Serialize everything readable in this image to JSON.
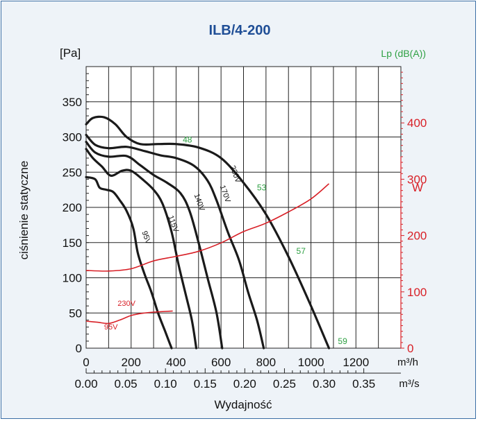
{
  "chart_data": {
    "type": "line",
    "title": "ILB/4-200",
    "ylabel": "ciśnienie statyczne",
    "yunit": "[Pa]",
    "xlabel": "Wydajność",
    "xunit": "m³/h",
    "x2unit": "m³/s",
    "y2unit": "W",
    "noise_unit": "Lp (dB(A))",
    "xlim": [
      0,
      1400
    ],
    "ylim": [
      0,
      400
    ],
    "y2lim": [
      0,
      500
    ],
    "x_ticks": [
      "0",
      "200",
      "400",
      "600",
      "800",
      "1000",
      "1200"
    ],
    "x_tick_values": [
      0,
      200,
      400,
      600,
      800,
      1000,
      1200
    ],
    "x2_ticks": [
      "0.00",
      "0.05",
      "0.10",
      "0.15",
      "0.20",
      "0.25",
      "0.30",
      "0.35"
    ],
    "x2_tick_values": [
      0,
      0.05,
      0.1,
      0.15,
      0.2,
      0.25,
      0.3,
      0.35
    ],
    "y_ticks": [
      "0",
      "50",
      "100",
      "150",
      "200",
      "250",
      "300",
      "350"
    ],
    "y_tick_values": [
      0,
      50,
      100,
      150,
      200,
      250,
      300,
      350
    ],
    "y2_ticks": [
      "0",
      "100",
      "200",
      "300",
      "400"
    ],
    "y2_tick_values": [
      0,
      100,
      200,
      300,
      400
    ],
    "series": [
      {
        "name": "230V",
        "label_at": [
          640,
          258
        ],
        "points": [
          [
            0,
            318
          ],
          [
            30,
            327
          ],
          [
            80,
            328
          ],
          [
            130,
            318
          ],
          [
            180,
            300
          ],
          [
            240,
            290
          ],
          [
            320,
            290
          ],
          [
            400,
            290
          ],
          [
            500,
            285
          ],
          [
            600,
            270
          ],
          [
            700,
            235
          ],
          [
            800,
            190
          ],
          [
            900,
            130
          ],
          [
            1000,
            60
          ],
          [
            1080,
            0
          ]
        ]
      },
      {
        "name": "170V",
        "label_at": [
          595,
          230
        ],
        "points": [
          [
            0,
            303
          ],
          [
            40,
            289
          ],
          [
            100,
            284
          ],
          [
            180,
            286
          ],
          [
            260,
            280
          ],
          [
            330,
            274
          ],
          [
            400,
            270
          ],
          [
            480,
            259
          ],
          [
            540,
            238
          ],
          [
            580,
            210
          ],
          [
            630,
            165
          ],
          [
            680,
            125
          ],
          [
            720,
            80
          ],
          [
            760,
            40
          ],
          [
            790,
            0
          ]
        ]
      },
      {
        "name": "140V",
        "label_at": [
          480,
          218
        ],
        "points": [
          [
            0,
            293
          ],
          [
            40,
            278
          ],
          [
            100,
            272
          ],
          [
            180,
            273
          ],
          [
            240,
            260
          ],
          [
            300,
            246
          ],
          [
            360,
            235
          ],
          [
            420,
            220
          ],
          [
            460,
            195
          ],
          [
            500,
            150
          ],
          [
            540,
            100
          ],
          [
            580,
            50
          ],
          [
            605,
            0
          ]
        ]
      },
      {
        "name": "115V",
        "label_at": [
          365,
          187
        ],
        "points": [
          [
            0,
            283
          ],
          [
            30,
            270
          ],
          [
            70,
            258
          ],
          [
            110,
            245
          ],
          [
            160,
            252
          ],
          [
            200,
            252
          ],
          [
            250,
            240
          ],
          [
            300,
            225
          ],
          [
            340,
            205
          ],
          [
            380,
            165
          ],
          [
            410,
            120
          ],
          [
            440,
            80
          ],
          [
            470,
            40
          ],
          [
            490,
            0
          ]
        ]
      },
      {
        "name": "95V",
        "label_at": [
          248,
          165
        ],
        "points": [
          [
            0,
            243
          ],
          [
            40,
            240
          ],
          [
            60,
            228
          ],
          [
            90,
            225
          ],
          [
            120,
            222
          ],
          [
            150,
            210
          ],
          [
            180,
            195
          ],
          [
            210,
            170
          ],
          [
            230,
            135
          ],
          [
            260,
            105
          ],
          [
            290,
            80
          ],
          [
            320,
            50
          ],
          [
            350,
            25
          ],
          [
            380,
            0
          ]
        ]
      }
    ],
    "power_series": [
      {
        "name": "230V",
        "label_at": [
          140,
          75
        ],
        "points": [
          [
            0,
            138
          ],
          [
            100,
            137
          ],
          [
            200,
            141
          ],
          [
            300,
            155
          ],
          [
            400,
            163
          ],
          [
            500,
            172
          ],
          [
            600,
            187
          ],
          [
            700,
            207
          ],
          [
            800,
            222
          ],
          [
            900,
            242
          ],
          [
            1000,
            265
          ],
          [
            1080,
            292
          ]
        ]
      },
      {
        "name": "95V",
        "label_at": [
          80,
          33
        ],
        "points": [
          [
            0,
            48
          ],
          [
            50,
            46
          ],
          [
            100,
            44
          ],
          [
            150,
            50
          ],
          [
            200,
            58
          ],
          [
            250,
            62
          ],
          [
            300,
            64
          ],
          [
            385,
            66
          ]
        ]
      }
    ],
    "noise_labels": [
      {
        "text": "48",
        "at": [
          430,
          296
        ]
      },
      {
        "text": "53",
        "at": [
          760,
          228
        ]
      },
      {
        "text": "57",
        "at": [
          935,
          138
        ]
      },
      {
        "text": "59",
        "at": [
          1120,
          10
        ]
      }
    ]
  }
}
